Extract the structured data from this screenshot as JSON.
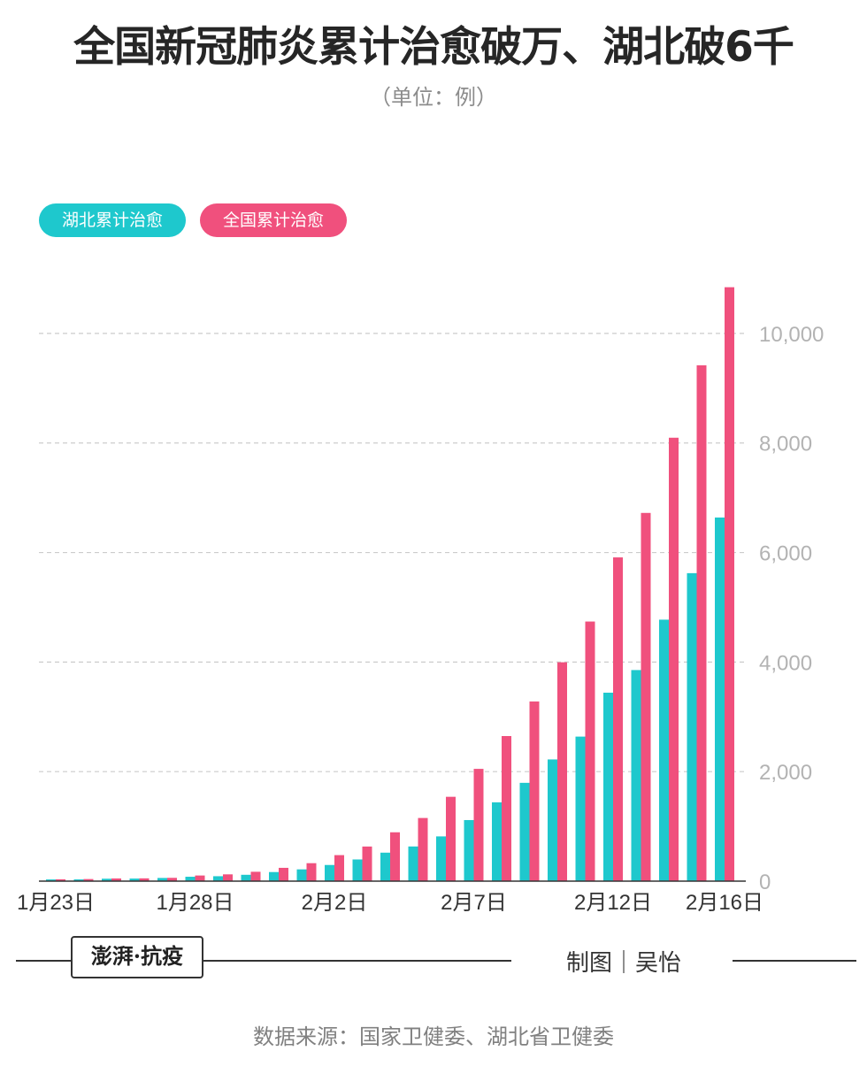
{
  "header": {
    "title": "全国新冠肺炎累计治愈破万、湖北破6千",
    "subtitle": "（单位：例）"
  },
  "colors": {
    "hubei": "#1ec8cd",
    "national": "#f0507d",
    "grid": "#cccccc",
    "tick_text": "#b3b3b3"
  },
  "chart_data": {
    "type": "bar",
    "unit": "例",
    "categories": [
      "1月23日",
      "1月24日",
      "1月25日",
      "1月26日",
      "1月27日",
      "1月28日",
      "1月29日",
      "1月30日",
      "1月31日",
      "2月1日",
      "2月2日",
      "2月3日",
      "2月4日",
      "2月5日",
      "2月6日",
      "2月7日",
      "2月8日",
      "2月9日",
      "2月10日",
      "2月11日",
      "2月12日",
      "2月13日",
      "2月14日",
      "2月15日",
      "2月16日"
    ],
    "series": [
      {
        "name": "湖北累计治愈",
        "values": [
          31,
          32,
          44,
          47,
          58,
          80,
          90,
          116,
          166,
          215,
          295,
          396,
          520,
          633,
          817,
          1115,
          1439,
          1795,
          2222,
          2639,
          3441,
          3854,
          4774,
          5623,
          6639
        ]
      },
      {
        "name": "全国累计治愈",
        "values": [
          34,
          38,
          49,
          51,
          60,
          103,
          124,
          171,
          243,
          328,
          475,
          632,
          892,
          1153,
          1540,
          2050,
          2649,
          3281,
          3996,
          4740,
          5911,
          6723,
          8096,
          9419,
          10844
        ]
      }
    ],
    "xticks": [
      "1月23日",
      "1月28日",
      "2月2日",
      "2月7日",
      "2月12日",
      "2月16日"
    ],
    "xtick_indices": [
      0,
      5,
      10,
      15,
      20,
      24
    ],
    "yticks": [
      "0",
      "2,000",
      "4,000",
      "6,000",
      "8,000",
      "10,000"
    ],
    "ytick_values": [
      0,
      2000,
      4000,
      6000,
      8000,
      10000
    ],
    "ylim": [
      0,
      11000
    ],
    "grid": true,
    "legend_position": "top-left",
    "yaxis_position": "right"
  },
  "footer": {
    "logo_text": "澎湃·抗疫",
    "credit": "制图｜吴怡",
    "source": "数据来源：国家卫健委、湖北省卫健委"
  }
}
